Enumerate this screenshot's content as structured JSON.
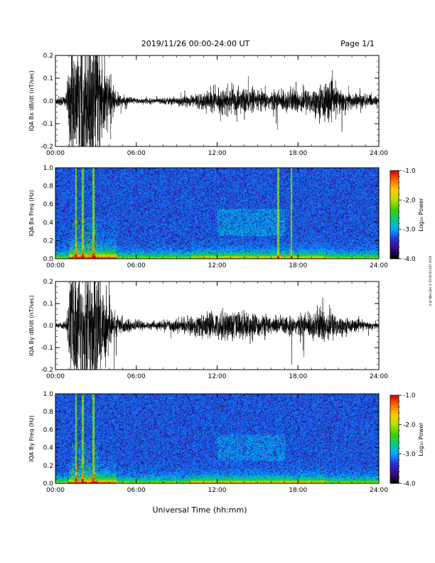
{
  "header": {
    "title": "2019/11/26  00:00-24:00 UT",
    "page": "Page 1/1"
  },
  "footer": {
    "xlabel": "Universal Time (hh:mm)"
  },
  "side_note": "mat Wed Dec 4 19:00:00 EST 2019",
  "colorbar": {
    "label": "Log₁₀ Power",
    "ticks": [
      "-1.0",
      "-2.0",
      "-3.0",
      "-4.0"
    ],
    "range": [
      -4.0,
      -1.0
    ],
    "colors": [
      "#000000",
      "#3a0a8a",
      "#2a30d8",
      "#00a8ff",
      "#00d080",
      "#3ccf00",
      "#b8e000",
      "#ffd000",
      "#ff7000",
      "#e00000"
    ]
  },
  "chart_data": [
    {
      "type": "line",
      "panel": "Bx dB/dt",
      "ylabel": "IQA Bx dB/dt (nT/sec)",
      "x_ticks": [
        "00:00",
        "06:00",
        "12:00",
        "18:00",
        "24:00"
      ],
      "y_ticks": [
        "0.2",
        "0.1",
        "0.0",
        "-0.1",
        "-0.2"
      ],
      "xlim": [
        0,
        24
      ],
      "ylim": [
        -0.2,
        0.2
      ],
      "envelope": {
        "hours": [
          0,
          0.8,
          1.2,
          1.8,
          2.5,
          3.0,
          3.5,
          4.0,
          4.5,
          5.0,
          6.0,
          7.0,
          8.0,
          9.0,
          10.0,
          11.0,
          12.0,
          13.0,
          14.0,
          15.0,
          16.0,
          17.0,
          18.0,
          19.0,
          19.5,
          20.0,
          20.5,
          21.0,
          22.0,
          23.0,
          24.0
        ],
        "amplitude": [
          0.02,
          0.03,
          0.3,
          0.3,
          0.3,
          0.3,
          0.25,
          0.1,
          0.04,
          0.025,
          0.015,
          0.012,
          0.015,
          0.02,
          0.03,
          0.04,
          0.05,
          0.06,
          0.06,
          0.05,
          0.045,
          0.05,
          0.06,
          0.06,
          0.07,
          0.09,
          0.08,
          0.06,
          0.04,
          0.03,
          0.02
        ]
      }
    },
    {
      "type": "heatmap",
      "panel": "Bx Freq",
      "ylabel": "IQA Bx Freq (Hz)",
      "x_ticks": [
        "00:00",
        "06:00",
        "12:00",
        "18:00",
        "24:00"
      ],
      "y_ticks": [
        "1.0",
        "0.8",
        "0.6",
        "0.4",
        "0.2",
        "0.0"
      ],
      "xlim": [
        0,
        24
      ],
      "ylim": [
        0.0,
        1.0
      ],
      "bright_columns_hours": [
        1.5,
        2.0,
        2.8,
        16.5,
        17.5
      ]
    },
    {
      "type": "line",
      "panel": "By dB/dt",
      "ylabel": "IQA By dB/dt (nT/sec)",
      "x_ticks": [
        "00:00",
        "06:00",
        "12:00",
        "18:00",
        "24:00"
      ],
      "y_ticks": [
        "0.2",
        "0.1",
        "0.0",
        "-0.1",
        "-0.2"
      ],
      "xlim": [
        0,
        24
      ],
      "ylim": [
        -0.2,
        0.2
      ],
      "envelope": {
        "hours": [
          0,
          0.8,
          1.2,
          1.8,
          2.5,
          3.0,
          3.5,
          4.0,
          4.5,
          5.0,
          6.0,
          7.0,
          8.0,
          9.0,
          10.0,
          11.0,
          12.0,
          13.0,
          14.0,
          15.0,
          16.0,
          17.0,
          18.0,
          19.0,
          19.5,
          20.0,
          20.5,
          21.0,
          22.0,
          23.0,
          24.0
        ],
        "amplitude": [
          0.01,
          0.02,
          0.3,
          0.3,
          0.3,
          0.3,
          0.25,
          0.12,
          0.06,
          0.035,
          0.02,
          0.018,
          0.022,
          0.03,
          0.04,
          0.06,
          0.06,
          0.075,
          0.07,
          0.055,
          0.045,
          0.045,
          0.05,
          0.06,
          0.08,
          0.09,
          0.07,
          0.05,
          0.03,
          0.02,
          0.015
        ]
      }
    },
    {
      "type": "heatmap",
      "panel": "By Freq",
      "ylabel": "IQA By Freq (Hz)",
      "x_ticks": [
        "00:00",
        "06:00",
        "12:00",
        "18:00",
        "24:00"
      ],
      "y_ticks": [
        "1.0",
        "0.8",
        "0.6",
        "0.4",
        "0.2",
        "0.0"
      ],
      "xlim": [
        0,
        24
      ],
      "ylim": [
        0.0,
        1.0
      ],
      "bright_columns_hours": [
        1.5,
        2.0,
        2.8
      ]
    }
  ]
}
